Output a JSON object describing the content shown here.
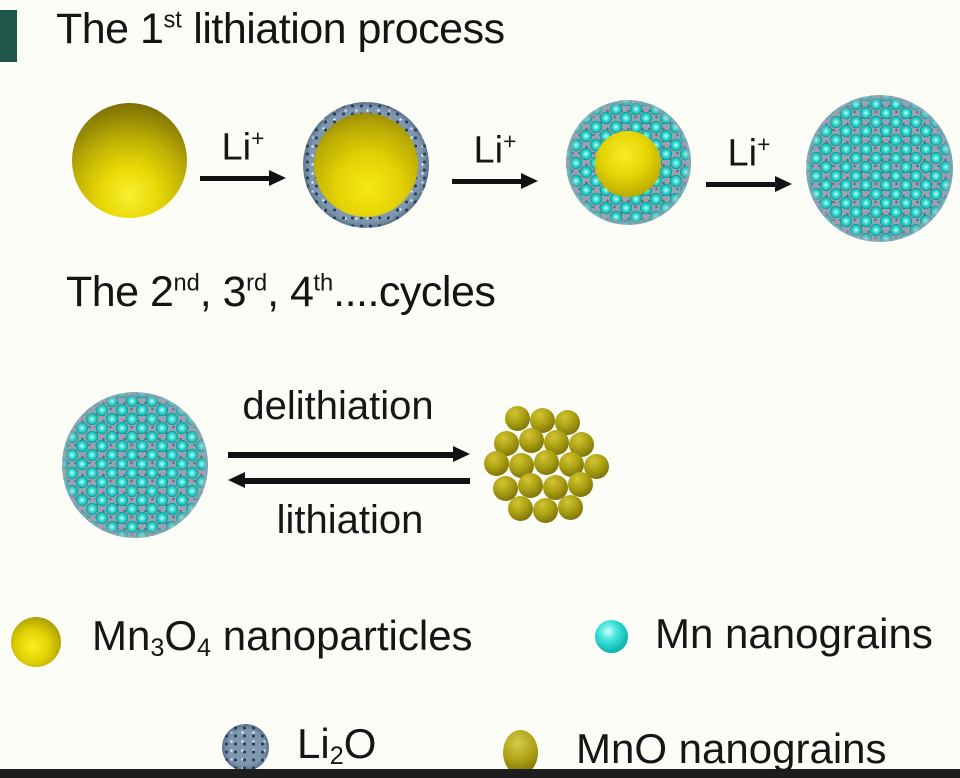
{
  "titles": {
    "first": {
      "p1": "The 1",
      "s1": "st",
      "p2": " lithiation process"
    },
    "cycles": {
      "p1": "The 2",
      "s1": "nd",
      "p2": ", 3",
      "s2": "rd",
      "p3": ", 4",
      "s3": "th",
      "p4": "....cycles"
    }
  },
  "arrows": {
    "li": {
      "base": "Li",
      "sup": "+"
    },
    "delithiation": "delithiation",
    "lithiation": "lithiation"
  },
  "legend": {
    "mn3o4": {
      "p1": "Mn",
      "s1": "3",
      "p2": "O",
      "s2": "4",
      "p3": " nanoparticles"
    },
    "mn": "Mn nanograins",
    "li2o": {
      "p1": "Li",
      "s1": "2",
      "p2": "O"
    },
    "mno": "MnO nanograins"
  },
  "colors": {
    "mn3o4_yellow": "#e8d805",
    "mn_cyan": "#10b4ad",
    "li2o_blue": "#7f98b0",
    "mno_olive": "#aba012",
    "text": "#141414",
    "bottom_bar": "#1d1d1d",
    "corner_bar": "#20564a",
    "background": "#fdfdf8"
  }
}
